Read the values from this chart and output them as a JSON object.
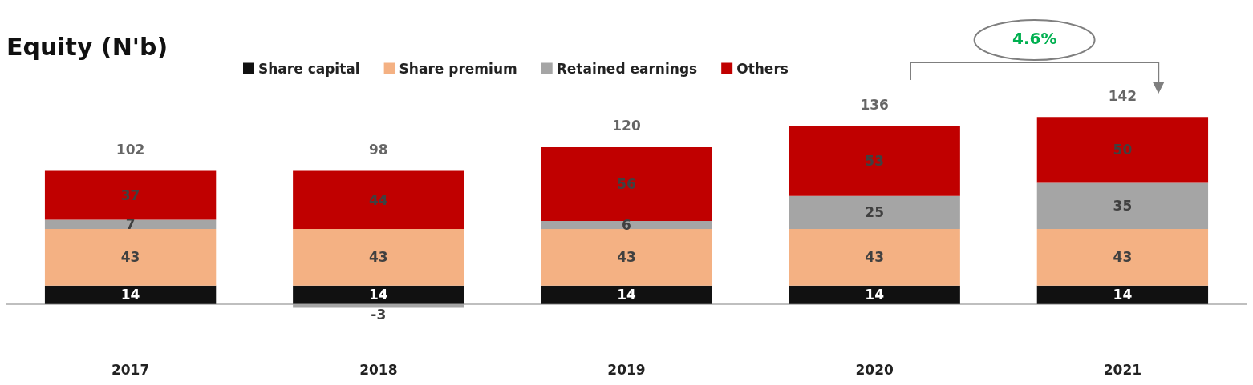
{
  "chart_data": {
    "type": "bar",
    "title": "Equity (N'b)",
    "stacked": true,
    "categories": [
      "2017",
      "2018",
      "2019",
      "2020",
      "2021"
    ],
    "series": [
      {
        "name": "Share capital",
        "color": "#111111",
        "values": [
          14,
          14,
          14,
          14,
          14
        ]
      },
      {
        "name": "Share premium",
        "color": "#f4b183",
        "values": [
          43,
          43,
          43,
          43,
          43
        ]
      },
      {
        "name": "Retained earnings",
        "color": "#a5a5a5",
        "values": [
          7,
          -3,
          6,
          25,
          35
        ]
      },
      {
        "name": "Others",
        "color": "#c00000",
        "values": [
          37,
          44,
          56,
          53,
          50
        ]
      }
    ],
    "data_labels": true,
    "totals": [
      "102",
      "98",
      "120",
      "136",
      "142"
    ],
    "legend": "top",
    "annotations": [
      "4.6%"
    ]
  }
}
